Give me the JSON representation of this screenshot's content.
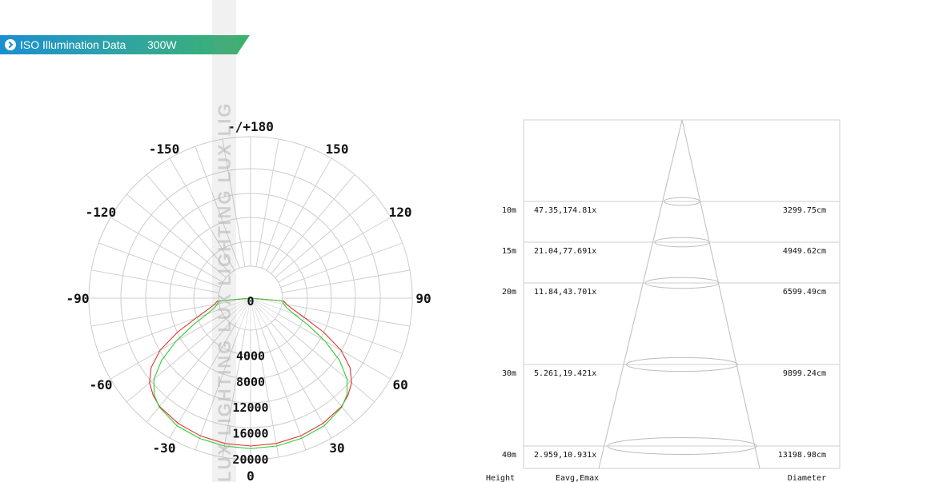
{
  "header": {
    "title": "ISO Illumination  Data",
    "power": "300W",
    "colors": {
      "blue": "#1a8fd0",
      "green": "#3bb36a"
    }
  },
  "watermark": {
    "text": "LUX LIGHTING  LUX LIGHTING  LUX LIG"
  },
  "chart_data": [
    {
      "type": "polar",
      "angle_labels": [
        {
          "deg": 180,
          "text": "-/+180"
        },
        {
          "deg": -150,
          "text": "-150"
        },
        {
          "deg": 150,
          "text": "150"
        },
        {
          "deg": -120,
          "text": "-120"
        },
        {
          "deg": 120,
          "text": "120"
        },
        {
          "deg": -90,
          "text": "-90"
        },
        {
          "deg": 90,
          "text": "90"
        },
        {
          "deg": -60,
          "text": "-60"
        },
        {
          "deg": 60,
          "text": "60"
        },
        {
          "deg": -30,
          "text": "-30"
        },
        {
          "deg": 30,
          "text": "30"
        },
        {
          "deg": 0,
          "text": "0"
        }
      ],
      "radial_labels": [
        "0",
        "4000",
        "8000",
        "12000",
        "16000",
        "20000"
      ],
      "radial_values": [
        0,
        4000,
        8000,
        12000,
        16000,
        20000
      ],
      "r_max": 20000,
      "angular_step": 10,
      "series": [
        {
          "color": "#e03030",
          "points": [
            [
              0,
              17900
            ],
            [
              10,
              17850
            ],
            [
              20,
              17700
            ],
            [
              30,
              17400
            ],
            [
              40,
              16900
            ],
            [
              45,
              16300
            ],
            [
              50,
              15400
            ],
            [
              55,
              13800
            ],
            [
              60,
              11200
            ],
            [
              65,
              7500
            ],
            [
              70,
              4000
            ],
            [
              75,
              1900
            ],
            [
              80,
              700
            ],
            [
              85,
              200
            ],
            [
              90,
              0
            ]
          ]
        },
        {
          "color": "#33cc33",
          "points": [
            [
              0,
              18300
            ],
            [
              10,
              18250
            ],
            [
              20,
              18100
            ],
            [
              30,
              17800
            ],
            [
              40,
              17000
            ],
            [
              45,
              16100
            ],
            [
              50,
              14500
            ],
            [
              55,
              11800
            ],
            [
              60,
              8300
            ],
            [
              65,
              4800
            ],
            [
              70,
              2200
            ],
            [
              75,
              800
            ],
            [
              80,
              250
            ],
            [
              85,
              50
            ],
            [
              90,
              0
            ]
          ]
        }
      ]
    },
    {
      "type": "table",
      "rows": [
        {
          "height": "10m",
          "eavg_emax": "47.35,174.81x",
          "diameter": "3299.75cm"
        },
        {
          "height": "15m",
          "eavg_emax": "21.04,77.691x",
          "diameter": "4949.62cm"
        },
        {
          "height": "20m",
          "eavg_emax": "11.84,43.701x",
          "diameter": "6599.49cm"
        },
        {
          "height": "30m",
          "eavg_emax": "5.261,19.421x",
          "diameter": "9899.24cm"
        },
        {
          "height": "40m",
          "eavg_emax": "2.959,10.931x",
          "diameter": "13198.98cm"
        }
      ],
      "footer": {
        "height": "Height",
        "eavg_emax": "Eavg,Emax",
        "diameter": "Diameter"
      }
    }
  ]
}
